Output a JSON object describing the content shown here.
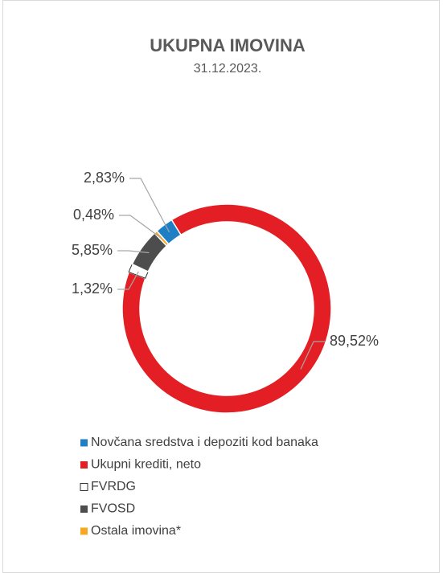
{
  "chart_data": {
    "type": "donut",
    "title": "UKUPNA IMOVINA",
    "subtitle": "31.12.2023.",
    "categories": [
      "Novčana sredstva i depoziti kod banaka",
      "Ukupni krediti, neto",
      "FVRDG",
      "FVOSD",
      "Ostala imovina*"
    ],
    "values": [
      2.83,
      89.52,
      1.32,
      5.85,
      0.48
    ],
    "value_labels": [
      "2,83%",
      "89,52%",
      "1,32%",
      "5,85%",
      "0,48%"
    ],
    "colors": [
      "#1f7fc4",
      "#e31e24",
      "#ffffff",
      "#4d4d4d",
      "#f7a823"
    ],
    "legend": "bottom"
  }
}
